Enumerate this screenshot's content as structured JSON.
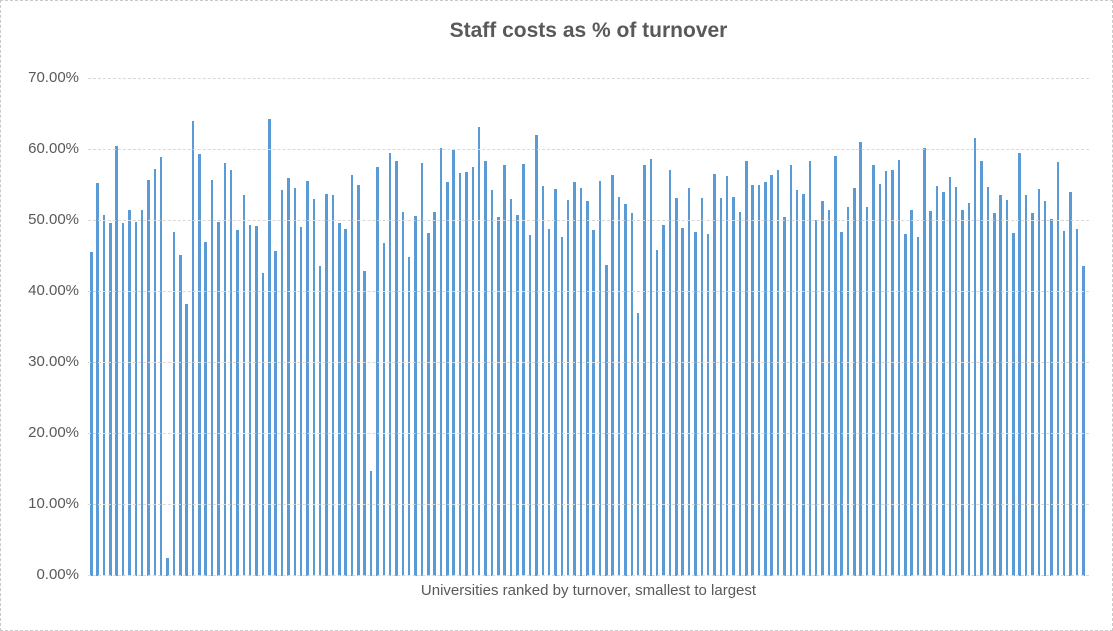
{
  "chart": {
    "title": "Staff costs as % of turnover",
    "x_axis_label": "Universities ranked by turnover, smallest to largest"
  },
  "chart_data": {
    "type": "bar",
    "title": "Staff costs as % of turnover",
    "xlabel": "Universities ranked by turnover, smallest to largest",
    "ylabel": "",
    "ylim": [
      0,
      70
    ],
    "ytick_labels": [
      "0.00%",
      "10.00%",
      "20.00%",
      "30.00%",
      "40.00%",
      "50.00%",
      "60.00%",
      "70.00%"
    ],
    "grid": true,
    "legend": false,
    "bar_color": "#5B9BD5",
    "gridline_color": "#D9D9D9",
    "text_color": "#595959",
    "x_description": "One bar per university, ranked by turnover from smallest to largest; no individual category labels shown",
    "values_unit": "percent",
    "values": [
      45.6,
      55.2,
      50.7,
      49.6,
      60.4,
      49.6,
      51.4,
      49.8,
      51.5,
      55.6,
      57.2,
      58.9,
      2.6,
      48.3,
      45.1,
      38.2,
      64.0,
      59.3,
      47.0,
      55.7,
      49.7,
      58.0,
      57.1,
      48.7,
      53.6,
      49.4,
      49.2,
      42.6,
      64.2,
      45.7,
      54.2,
      55.9,
      54.5,
      49.0,
      55.5,
      53.0,
      43.6,
      53.7,
      53.6,
      49.6,
      48.8,
      56.4,
      55.0,
      42.9,
      14.7,
      57.5,
      46.8,
      59.5,
      58.3,
      51.1,
      44.9,
      50.6,
      58.1,
      48.2,
      51.1,
      60.1,
      55.4,
      59.9,
      56.7,
      56.8,
      57.5,
      63.1,
      58.3,
      54.3,
      50.4,
      57.8,
      53.0,
      50.8,
      57.9,
      47.9,
      62.0,
      54.8,
      48.8,
      54.4,
      47.7,
      52.9,
      55.4,
      54.5,
      52.7,
      48.7,
      55.5,
      43.7,
      56.4,
      53.3,
      52.3,
      51.0,
      36.9,
      57.8,
      58.6,
      45.8,
      49.3,
      57.1,
      53.2,
      48.9,
      54.6,
      48.3,
      53.2,
      48.1,
      56.5,
      53.1,
      56.2,
      53.3,
      51.2,
      58.3,
      54.9,
      55.0,
      55.4,
      56.3,
      57.1,
      50.4,
      57.8,
      54.3,
      53.7,
      58.3,
      50.0,
      52.7,
      51.5,
      59.1,
      48.4,
      51.8,
      54.5,
      61.0,
      51.8,
      57.8,
      55.1,
      56.9,
      57.1,
      58.5,
      48.1,
      51.4,
      47.7,
      60.1,
      51.3,
      54.8,
      54.0,
      56.1,
      54.7,
      51.5,
      52.5,
      61.5,
      58.4,
      54.7,
      51.0,
      53.5,
      52.8,
      48.2,
      59.5,
      53.6,
      51.0,
      54.4,
      52.7,
      50.2,
      58.2,
      48.5,
      54.0,
      48.8,
      43.6
    ]
  }
}
